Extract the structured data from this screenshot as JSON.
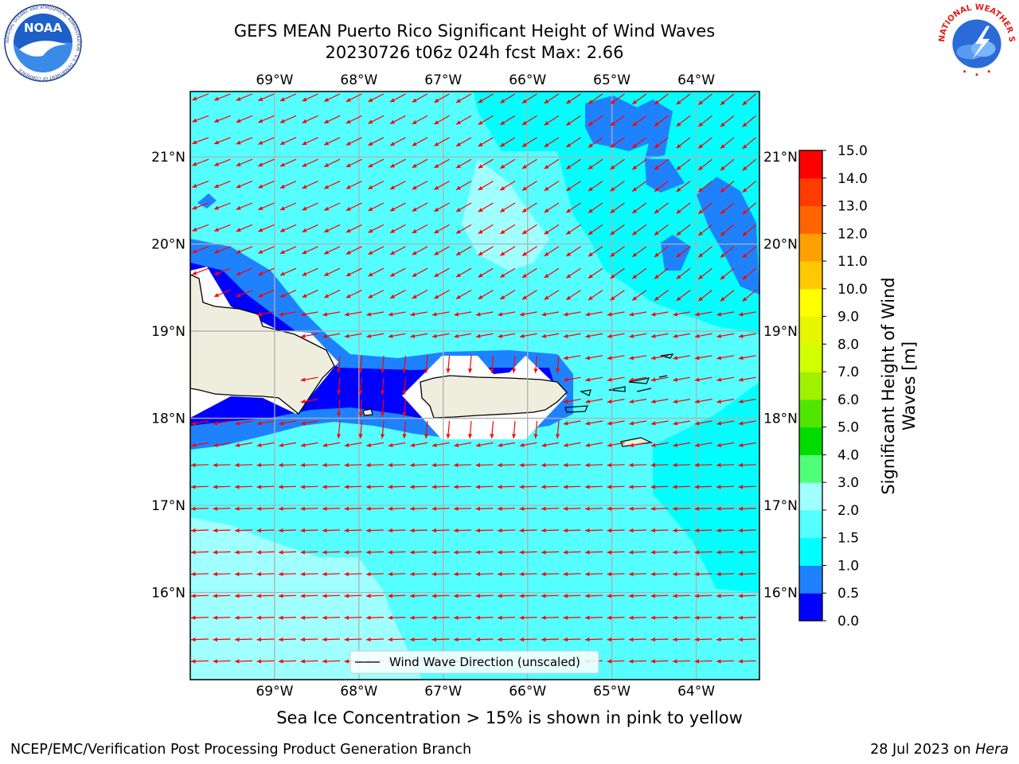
{
  "header": {
    "title_line1": "GEFS MEAN Puerto Rico Significant Height of Wind Waves",
    "title_line2": "20230726 t06z 024h fcst   Max: 2.66"
  },
  "logos": {
    "noaa": {
      "text": "NOAA",
      "ring_text": "NATIONAL OCEANIC AND ATMOSPHERIC ADMINISTRATION · U.S. DEPARTMENT OF COMMERCE"
    },
    "nws": {
      "ring_text": "NATIONAL WEATHER SERVICE"
    }
  },
  "map": {
    "lon_ticks": [
      "69°W",
      "68°W",
      "67°W",
      "66°W",
      "65°W",
      "64°W"
    ],
    "lat_ticks": [
      "21°N",
      "20°N",
      "19°N",
      "18°N",
      "17°N",
      "16°N"
    ],
    "lon_range": [
      -70.0,
      -63.25
    ],
    "lat_range": [
      15.0,
      21.75
    ],
    "legend_label": "Wind Wave Direction (unscaled)",
    "arrow_color": "#ff0000",
    "land_color": "#efedde"
  },
  "colorbar": {
    "label": "Significant Height of Wind\nWaves [m]",
    "ticks": [
      "0.0",
      "0.5",
      "1.0",
      "1.5",
      "2.0",
      "3.0",
      "4.0",
      "5.0",
      "6.0",
      "7.0",
      "8.0",
      "9.0",
      "10.0",
      "11.0",
      "12.0",
      "13.0",
      "14.0",
      "15.0"
    ],
    "colors": [
      "#0000ff",
      "#1e82ff",
      "#00ffff",
      "#55ffff",
      "#a0ffff",
      "#50ff78",
      "#00dc00",
      "#50e600",
      "#a0f000",
      "#d2ff00",
      "#e6f500",
      "#ffff00",
      "#ffc800",
      "#ffa000",
      "#ff6400",
      "#ff3c00",
      "#ff0000"
    ]
  },
  "subtitle": "Sea Ice Concentration > 15% is shown in pink to yellow",
  "footer": {
    "left": "NCEP/EMC/Verification Post Processing Product Generation Branch",
    "right_prefix": "28 Jul 2023 on ",
    "right_host": "Hera"
  }
}
